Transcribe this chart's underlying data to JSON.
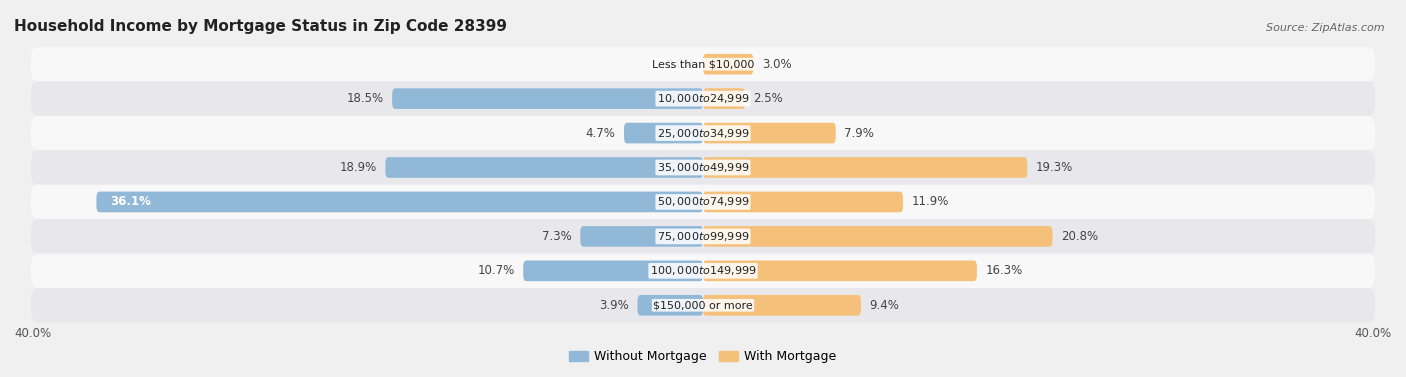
{
  "title": "Household Income by Mortgage Status in Zip Code 28399",
  "source": "Source: ZipAtlas.com",
  "categories": [
    "Less than $10,000",
    "$10,000 to $24,999",
    "$25,000 to $34,999",
    "$35,000 to $49,999",
    "$50,000 to $74,999",
    "$75,000 to $99,999",
    "$100,000 to $149,999",
    "$150,000 or more"
  ],
  "without_mortgage": [
    0.0,
    18.5,
    4.7,
    18.9,
    36.1,
    7.3,
    10.7,
    3.9
  ],
  "with_mortgage": [
    3.0,
    2.5,
    7.9,
    19.3,
    11.9,
    20.8,
    16.3,
    9.4
  ],
  "color_without": "#92b8d8",
  "color_with": "#f5c07a",
  "color_without_dark": "#5a9abf",
  "color_with_dark": "#e8954a",
  "xlim": 40.0,
  "bg_color": "#f0f0f0",
  "row_bg_light": "#f8f8f8",
  "row_bg_dark": "#e8e8ec",
  "title_fontsize": 11,
  "label_fontsize": 8.5,
  "legend_fontsize": 9,
  "source_fontsize": 8,
  "bar_height": 0.6
}
